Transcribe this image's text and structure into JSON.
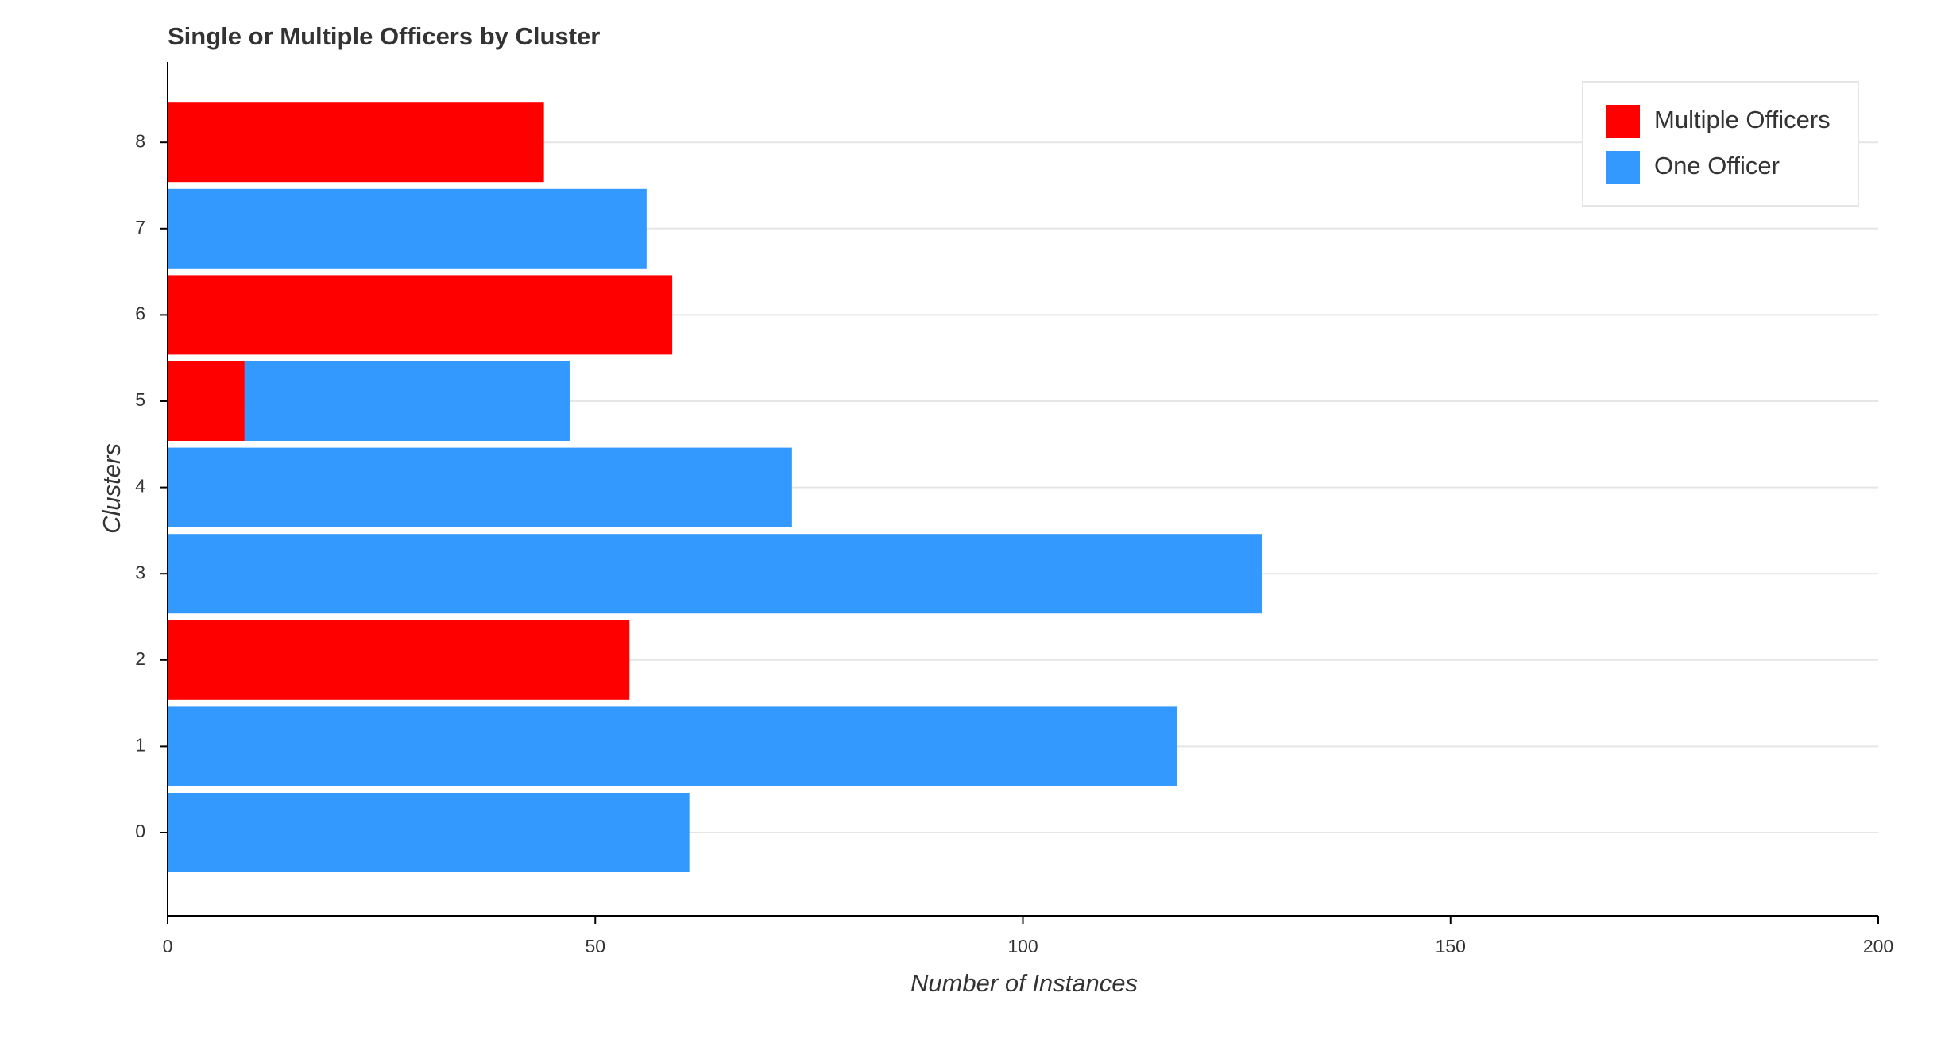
{
  "chart_data": {
    "type": "stacked-barh",
    "title": "Single or Multiple Officers by Cluster",
    "x_label": "Number of Instances",
    "y_label": "Clusters",
    "categories": [
      "0",
      "1",
      "2",
      "3",
      "4",
      "5",
      "6",
      "7",
      "8"
    ],
    "series": [
      {
        "name": "Multiple Officers",
        "color": "#ff0000",
        "values": [
          0,
          0,
          54,
          0,
          0,
          9,
          59,
          0,
          44
        ]
      },
      {
        "name": "One Officer",
        "color": "#3399ff",
        "values": [
          61,
          118,
          0,
          128,
          73,
          38,
          0,
          56,
          0
        ]
      }
    ],
    "xlim": [
      0,
      200
    ],
    "xticks": [
      0,
      50,
      100,
      150,
      200
    ],
    "grid": true,
    "legend": "top-right"
  }
}
